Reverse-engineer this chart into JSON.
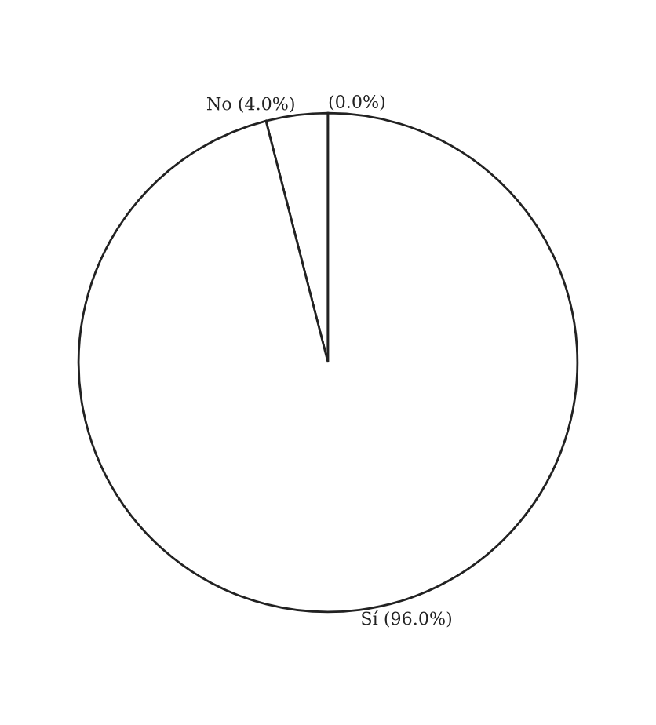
{
  "chart_data": {
    "type": "pie",
    "categories": [
      null,
      "No",
      "Sí"
    ],
    "values": [
      0,
      4,
      96
    ],
    "value_labels": [
      "(0.0%)",
      "(4.0%)",
      "(96.0%)"
    ],
    "colors": [
      "#ffffff",
      "#ffffff",
      "#ffffff"
    ]
  }
}
